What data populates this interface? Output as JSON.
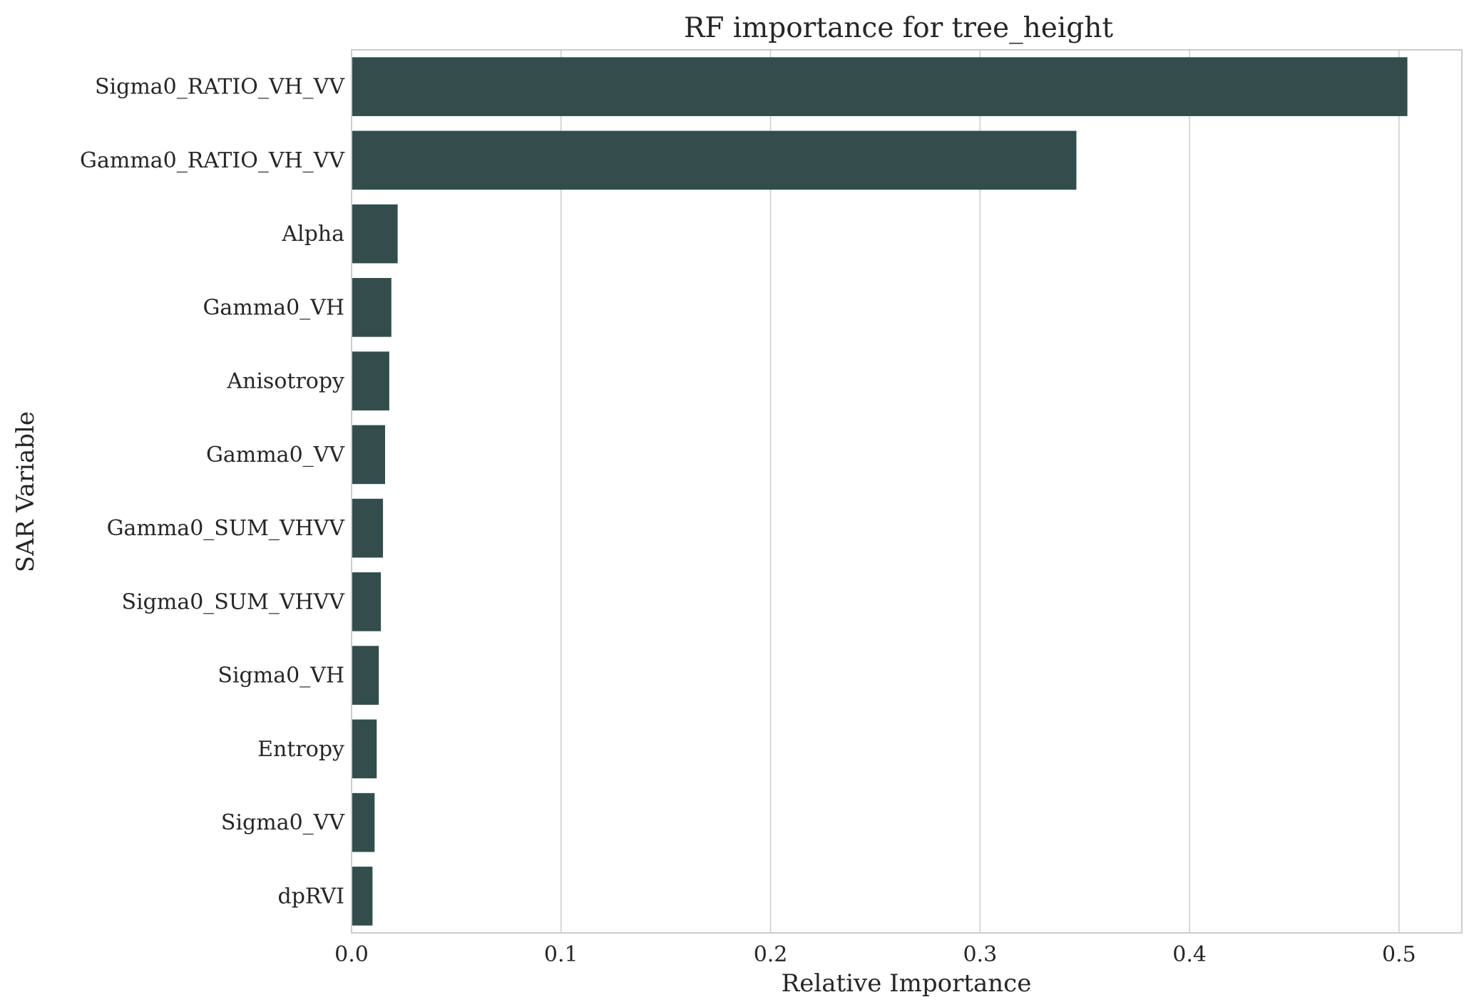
{
  "chart_data": {
    "type": "bar",
    "orientation": "horizontal",
    "title": "RF importance for tree_height",
    "xlabel": "Relative Importance",
    "ylabel": "SAR Variable",
    "xlim": [
      0,
      0.53
    ],
    "xticks": [
      "0.0",
      "0.1",
      "0.2",
      "0.3",
      "0.4",
      "0.5"
    ],
    "grid": "vertical",
    "bar_color": "#334d4d",
    "categories": [
      "Sigma0_RATIO_VH_VV",
      "Gamma0_RATIO_VH_VV",
      "Alpha",
      "Gamma0_VH",
      "Anisotropy",
      "Gamma0_VV",
      "Gamma0_SUM_VHVV",
      "Sigma0_SUM_VHVV",
      "Sigma0_VH",
      "Entropy",
      "Sigma0_VV",
      "dpRVI"
    ],
    "values": [
      0.504,
      0.346,
      0.022,
      0.019,
      0.018,
      0.016,
      0.015,
      0.014,
      0.013,
      0.012,
      0.011,
      0.01
    ]
  }
}
